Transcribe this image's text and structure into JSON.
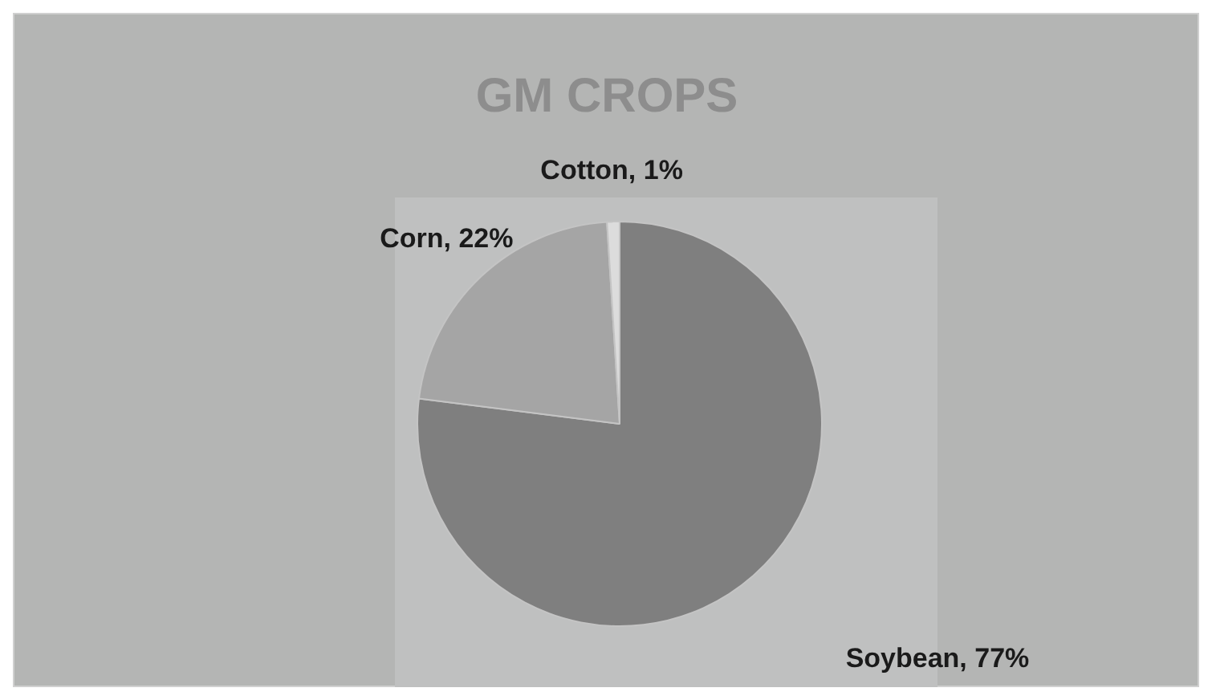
{
  "chart_data": {
    "type": "pie",
    "title": "GM CROPS",
    "categories": [
      "Soybean",
      "Corn",
      "Cotton"
    ],
    "values": [
      77,
      22,
      1
    ],
    "value_labels": [
      "77%",
      "22%",
      "1%"
    ],
    "colors": [
      "#7f7f7f",
      "#a5a5a5",
      "#dcdcdc"
    ]
  }
}
